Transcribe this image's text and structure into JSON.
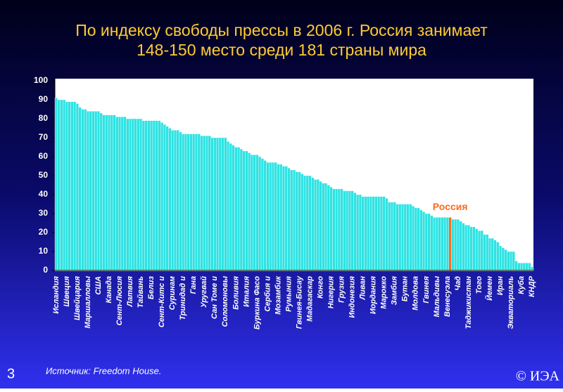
{
  "page_number": "3",
  "source": "Источник:  Freedom House.",
  "copyright": "© ИЭА",
  "chart_data": {
    "type": "bar",
    "title": [
      "По индексу свободы прессы в 2006 г. Россия занимает",
      "148-150 место среди 181 страны мира"
    ],
    "categories": [
      "Исландия",
      null,
      null,
      null,
      "Швеция",
      null,
      null,
      null,
      "Швейцария",
      null,
      null,
      null,
      "Маршалловы",
      null,
      null,
      null,
      "США",
      null,
      null,
      null,
      "Канада",
      null,
      null,
      null,
      "Сент-Люсия",
      null,
      null,
      null,
      "Латвия",
      null,
      null,
      null,
      "Тайвань",
      null,
      null,
      null,
      "Белиз",
      null,
      null,
      null,
      "Сент-Китс и",
      null,
      null,
      null,
      "Суринам",
      null,
      null,
      null,
      "Тринидад и",
      null,
      null,
      null,
      "Гана",
      null,
      null,
      null,
      "Уругвай",
      null,
      null,
      null,
      "Сан Томе и",
      null,
      null,
      null,
      "Соломоновы",
      null,
      null,
      null,
      "Боливия",
      null,
      null,
      null,
      "Италия",
      null,
      null,
      null,
      "Буркина Фасо",
      null,
      null,
      null,
      "Сербия и",
      null,
      null,
      null,
      "Мозамбик",
      null,
      null,
      null,
      "Румыния",
      null,
      null,
      null,
      "Гвинея-Бисау",
      null,
      null,
      null,
      "Мадагаскар",
      null,
      null,
      null,
      "Конго",
      null,
      null,
      null,
      "Нигерия",
      null,
      null,
      null,
      "Грузия",
      null,
      null,
      null,
      "Индонезия",
      null,
      null,
      null,
      "Ливан",
      null,
      null,
      null,
      "Иордания",
      null,
      null,
      null,
      "Марокко",
      null,
      null,
      null,
      "Замбия",
      null,
      null,
      null,
      "Бутан",
      null,
      null,
      null,
      "Молдова",
      null,
      null,
      null,
      "Гвинея",
      null,
      null,
      null,
      "Мальдивы",
      null,
      null,
      null,
      "Венесуэла",
      null,
      null,
      null,
      "Чад",
      null,
      null,
      null,
      "Таджикистан",
      null,
      null,
      null,
      "Того",
      null,
      null,
      null,
      "Йемен",
      null,
      null,
      null,
      "Иран",
      null,
      null,
      null,
      "Экваториаль",
      null,
      null,
      null,
      "Куба",
      null,
      null,
      null,
      "КНДР"
    ],
    "values": [
      91,
      90,
      90,
      90,
      89,
      89,
      89,
      89,
      88,
      86,
      85,
      85,
      84,
      84,
      84,
      84,
      84,
      83,
      82,
      82,
      82,
      82,
      82,
      81,
      81,
      81,
      81,
      80,
      80,
      80,
      80,
      80,
      80,
      79,
      79,
      79,
      79,
      79,
      79,
      79,
      78,
      77,
      76,
      75,
      74,
      74,
      74,
      73,
      72,
      72,
      72,
      72,
      72,
      72,
      72,
      71,
      71,
      71,
      71,
      70,
      70,
      70,
      70,
      70,
      70,
      68,
      67,
      66,
      65,
      65,
      64,
      63,
      63,
      62,
      61,
      61,
      61,
      60,
      59,
      58,
      57,
      57,
      57,
      57,
      56,
      56,
      55,
      55,
      54,
      53,
      53,
      52,
      52,
      51,
      50,
      50,
      50,
      49,
      48,
      48,
      47,
      46,
      46,
      45,
      44,
      43,
      43,
      43,
      43,
      42,
      42,
      42,
      42,
      41,
      40,
      40,
      39,
      39,
      39,
      39,
      39,
      39,
      39,
      39,
      39,
      38,
      36,
      36,
      36,
      35,
      35,
      35,
      35,
      35,
      35,
      34,
      33,
      33,
      32,
      31,
      30,
      30,
      29,
      28,
      28,
      28,
      28,
      28,
      28,
      28,
      27,
      27,
      27,
      26,
      25,
      24,
      24,
      23,
      23,
      22,
      21,
      21,
      19,
      19,
      17,
      17,
      16,
      15,
      13,
      12,
      11,
      10,
      10,
      10,
      5,
      4,
      4,
      4,
      4,
      4,
      2
    ],
    "color": "#2ee3e3",
    "highlight": {
      "index": 149,
      "color": "#ff6a1a",
      "label": "Россия"
    },
    "ylim": [
      0,
      100
    ],
    "yticks": [
      0,
      10,
      20,
      30,
      40,
      50,
      60,
      70,
      80,
      90,
      100
    ]
  }
}
